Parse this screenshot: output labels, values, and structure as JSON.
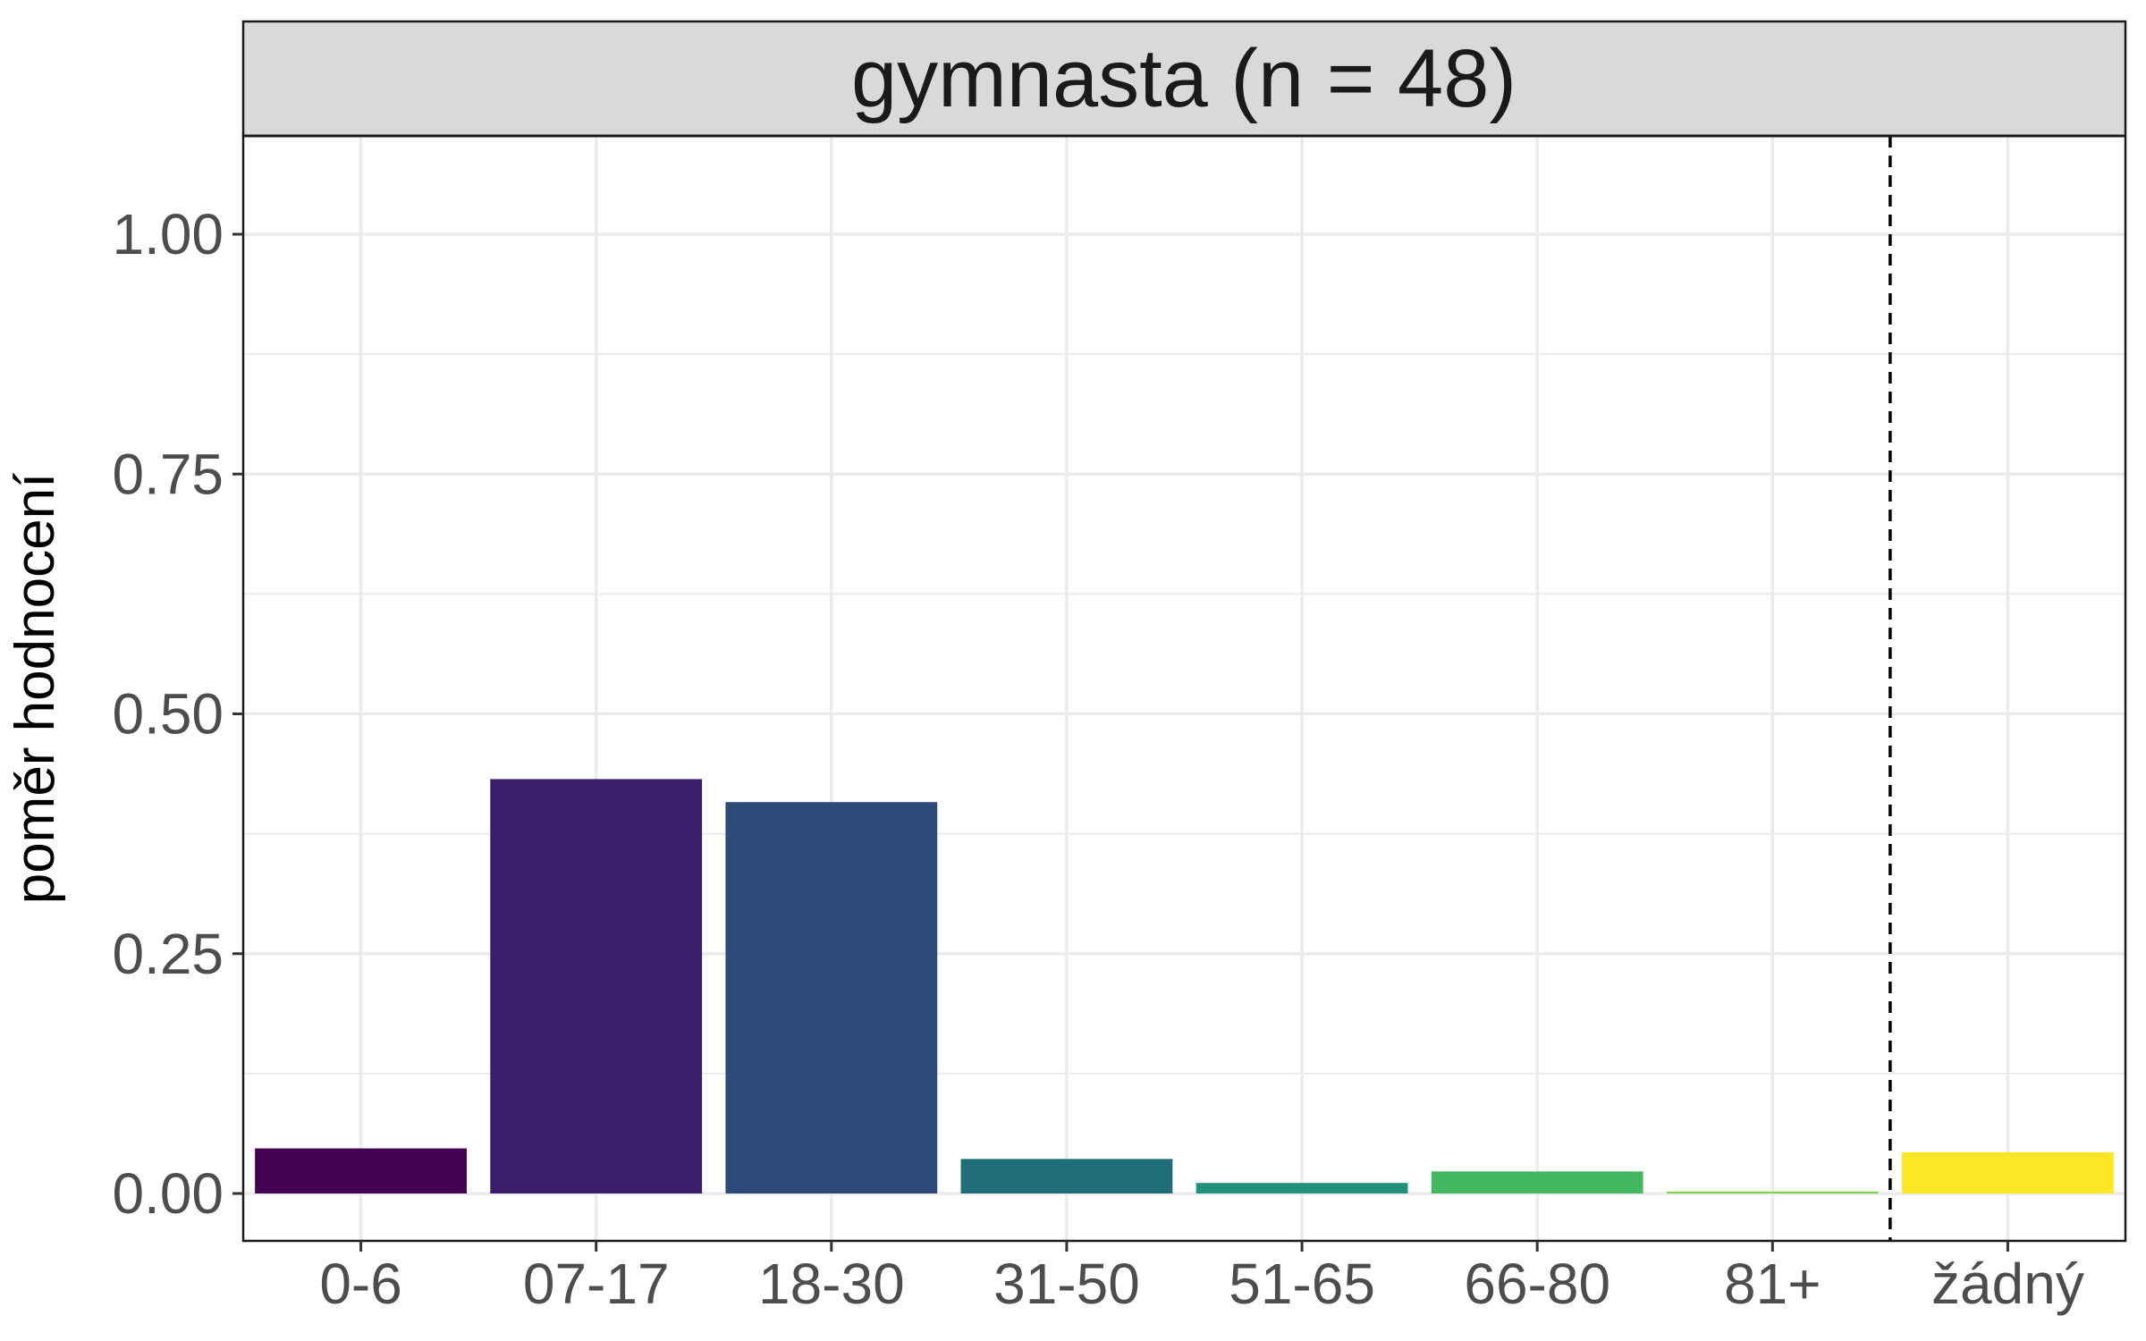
{
  "chart_data": {
    "type": "bar",
    "facet_title": "gymnasta (n = 48)",
    "title": "",
    "xlabel": "",
    "ylabel": "poměr hodnocení",
    "categories": [
      "0-6",
      "07-17",
      "18-30",
      "31-50",
      "51-65",
      "66-80",
      "81+",
      "žádný"
    ],
    "values": [
      0.047,
      0.432,
      0.408,
      0.036,
      0.011,
      0.023,
      0.002,
      0.043
    ],
    "colors": [
      "#440154",
      "#3B1F6A",
      "#2D4B79",
      "#1F6E7A",
      "#21917D",
      "#42B860",
      "#7FD34E",
      "#FDE725"
    ],
    "ylim": [
      -0.05,
      1.1
    ],
    "yticks": [
      0.0,
      0.25,
      0.5,
      0.75,
      1.0
    ],
    "ytick_labels": [
      "0.00",
      "0.25",
      "0.50",
      "0.75",
      "1.00"
    ],
    "grid": true,
    "reference_line": {
      "style": "dashed",
      "between": [
        "81+",
        "žádný"
      ]
    }
  }
}
